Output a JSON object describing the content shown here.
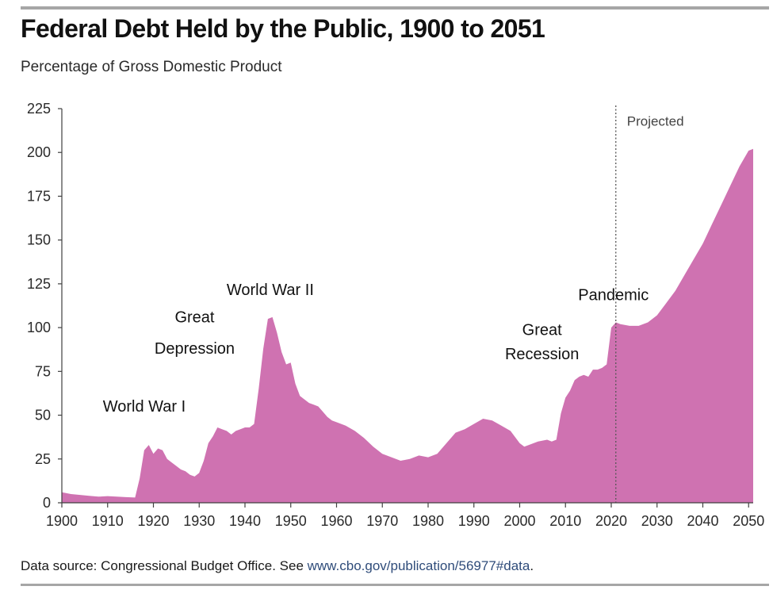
{
  "header": {
    "title": "Federal Debt Held by the Public, 1900 to 2051",
    "subtitle": "Percentage of Gross Domestic Product"
  },
  "footer": {
    "source_prefix": "Data source: Congressional Budget Office. See ",
    "source_link": "www.cbo.gov/publication/56977#data",
    "source_suffix": "."
  },
  "colors": {
    "area_fill": "#cf72b1",
    "axis": "#404040",
    "rule": "#a6a6a6",
    "link": "#2f4c7a"
  },
  "chart_data": {
    "type": "area",
    "title": "Federal Debt Held by the Public, 1900 to 2051",
    "subtitle": "Percentage of Gross Domestic Product",
    "xlabel": "",
    "ylabel": "",
    "xlim": [
      1900,
      2051
    ],
    "ylim": [
      0,
      225
    ],
    "x_ticks": [
      1900,
      1910,
      1920,
      1930,
      1940,
      1950,
      1960,
      1970,
      1980,
      1990,
      2000,
      2010,
      2020,
      2030,
      2040,
      2050
    ],
    "y_ticks": [
      0,
      25,
      50,
      75,
      100,
      125,
      150,
      175,
      200,
      225
    ],
    "grid": false,
    "series": [
      {
        "x": [
          1900,
          1902,
          1904,
          1906,
          1908,
          1910,
          1912,
          1914,
          1916,
          1917,
          1918,
          1919,
          1920,
          1921,
          1922,
          1923,
          1924,
          1925,
          1926,
          1927,
          1928,
          1929,
          1930,
          1931,
          1932,
          1933,
          1934,
          1935,
          1936,
          1937,
          1938,
          1939,
          1940,
          1941,
          1942,
          1943,
          1944,
          1945,
          1946,
          1947,
          1948,
          1949,
          1950,
          1951,
          1952,
          1953,
          1954,
          1955,
          1956,
          1957,
          1958,
          1959,
          1960,
          1962,
          1964,
          1966,
          1968,
          1970,
          1972,
          1974,
          1976,
          1978,
          1980,
          1982,
          1984,
          1986,
          1988,
          1990,
          1992,
          1994,
          1996,
          1998,
          2000,
          2001,
          2002,
          2004,
          2006,
          2007,
          2008,
          2009,
          2010,
          2011,
          2012,
          2013,
          2014,
          2015,
          2016,
          2017,
          2018,
          2019,
          2020,
          2021,
          2022,
          2024,
          2026,
          2028,
          2030,
          2032,
          2034,
          2036,
          2038,
          2040,
          2042,
          2044,
          2046,
          2048,
          2050,
          2051
        ],
        "y": [
          6,
          5,
          4.5,
          4,
          3.5,
          3.8,
          3.5,
          3.2,
          3,
          14,
          30,
          33,
          28,
          31,
          30,
          25,
          23,
          21,
          19,
          18,
          16,
          15,
          17,
          24,
          34,
          38,
          43,
          42,
          41,
          39,
          41,
          42,
          43,
          43,
          45,
          65,
          88,
          105,
          106,
          97,
          86,
          79,
          80,
          68,
          61,
          59,
          57,
          56,
          55,
          52,
          49,
          47,
          46,
          44,
          41,
          37,
          32,
          28,
          26,
          24,
          25,
          27,
          26,
          28,
          34,
          40,
          42,
          45,
          48,
          47,
          44,
          41,
          34,
          32,
          33,
          35,
          36,
          35,
          36,
          51,
          60,
          64,
          70,
          72,
          73,
          72,
          76,
          76,
          77,
          79,
          100,
          103,
          102,
          101,
          101,
          103,
          107,
          114,
          121,
          130,
          139,
          148,
          159,
          170,
          181,
          192,
          201,
          202
        ]
      }
    ],
    "annotations": [
      {
        "text": "World War I",
        "x": 1918,
        "y": 33
      },
      {
        "text": "Great",
        "x": 1929,
        "y": 56
      },
      {
        "text": "Depression",
        "x": 1929,
        "y": 52
      },
      {
        "text": "World War II",
        "x": 1945,
        "y": 106
      },
      {
        "text": "Great",
        "x": 2008,
        "y": 80
      },
      {
        "text": "Recession",
        "x": 2008,
        "y": 76
      },
      {
        "text": "Pandemic",
        "x": 2021,
        "y": 103
      },
      {
        "text": "Projected",
        "x": 2021,
        "y": 222
      }
    ],
    "projection_start": 2021
  }
}
